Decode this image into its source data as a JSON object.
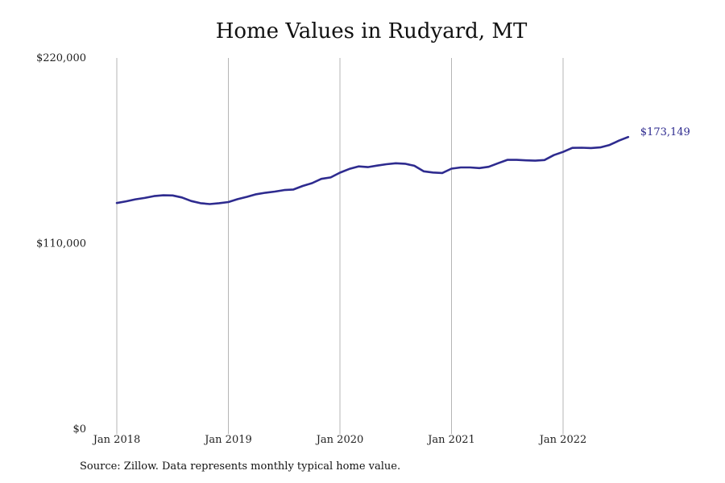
{
  "chart_data": {
    "type": "line",
    "title": "Home Values in Rudyard, MT",
    "xlabel": "",
    "ylabel": "",
    "ylim": [
      0,
      220000
    ],
    "y_ticks": [
      {
        "value": 0,
        "label": "$0"
      },
      {
        "value": 110000,
        "label": "$110,000"
      },
      {
        "value": 220000,
        "label": "$220,000"
      }
    ],
    "x_ticks": [
      {
        "value": "2018-01",
        "label": "Jan 2018"
      },
      {
        "value": "2019-01",
        "label": "Jan 2019"
      },
      {
        "value": "2020-01",
        "label": "Jan 2020"
      },
      {
        "value": "2021-01",
        "label": "Jan 2021"
      },
      {
        "value": "2022-01",
        "label": "Jan 2022"
      }
    ],
    "grid": "vertical",
    "line_color": "#2e2b8f",
    "x": [
      "2018-01",
      "2018-02",
      "2018-03",
      "2018-04",
      "2018-05",
      "2018-06",
      "2018-07",
      "2018-08",
      "2018-09",
      "2018-10",
      "2018-11",
      "2018-12",
      "2019-01",
      "2019-02",
      "2019-03",
      "2019-04",
      "2019-05",
      "2019-06",
      "2019-07",
      "2019-08",
      "2019-09",
      "2019-10",
      "2019-11",
      "2019-12",
      "2020-01",
      "2020-02",
      "2020-03",
      "2020-04",
      "2020-05",
      "2020-06",
      "2020-07",
      "2020-08",
      "2020-09",
      "2020-10",
      "2020-11",
      "2020-12",
      "2021-01",
      "2021-02",
      "2021-03",
      "2021-04",
      "2021-05",
      "2021-06",
      "2021-07",
      "2021-08",
      "2021-09",
      "2021-10",
      "2021-11",
      "2021-12",
      "2022-01",
      "2022-02",
      "2022-03",
      "2022-04",
      "2022-05",
      "2022-06",
      "2022-07",
      "2022-08"
    ],
    "series": [
      {
        "values": [
          134000,
          135000,
          136200,
          137000,
          138100,
          138600,
          138500,
          137300,
          135200,
          133900,
          133400,
          133900,
          134600,
          136300,
          137700,
          139200,
          140100,
          140800,
          141700,
          142000,
          144100,
          145800,
          148300,
          149200,
          152000,
          154200,
          155700,
          155300,
          156200,
          157000,
          157600,
          157300,
          156100,
          152800,
          152100,
          151800,
          154400,
          155100,
          155100,
          154700,
          155500,
          157600,
          159600,
          159600,
          159300,
          159100,
          159500,
          162400,
          164300,
          166700,
          166800,
          166600,
          167000,
          168400,
          171000,
          173149
        ]
      }
    ],
    "end_label": "$173,149"
  },
  "footer": {
    "source": "Source: Zillow. Data represents monthly typical home value."
  }
}
